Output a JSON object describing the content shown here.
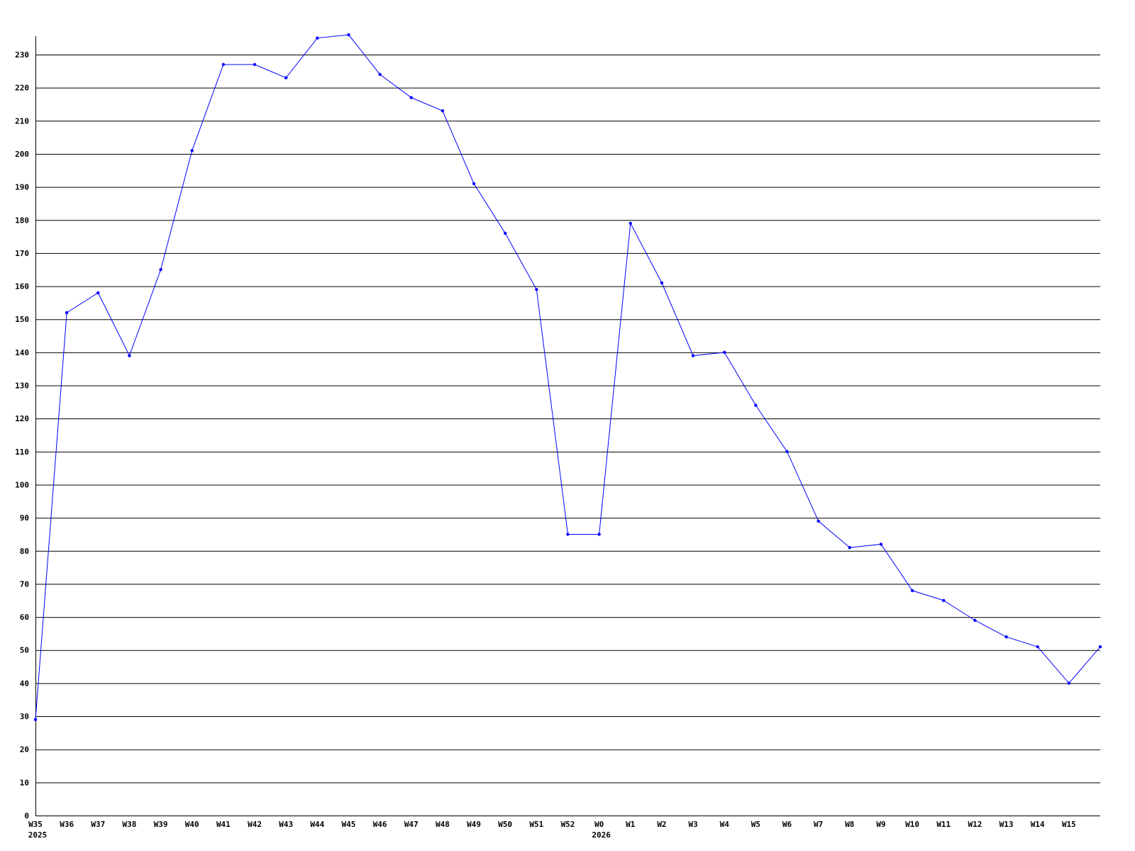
{
  "chart_data": {
    "type": "line",
    "title": "",
    "xlabel": "",
    "ylabel": "",
    "ylim": [
      0,
      236
    ],
    "y_ticks": [
      0,
      10,
      20,
      30,
      40,
      50,
      60,
      70,
      80,
      90,
      100,
      110,
      120,
      130,
      140,
      150,
      160,
      170,
      180,
      190,
      200,
      210,
      220,
      230
    ],
    "grid": "horizontal",
    "categories": [
      "W35",
      "W36",
      "W37",
      "W38",
      "W39",
      "W40",
      "W41",
      "W42",
      "W43",
      "W44",
      "W45",
      "W46",
      "W47",
      "W48",
      "W49",
      "W50",
      "W51",
      "W52",
      "W0",
      "W1",
      "W2",
      "W3",
      "W4",
      "W5",
      "W6",
      "W7",
      "W8",
      "W9",
      "W10",
      "W11",
      "W12",
      "W13",
      "W14",
      "W15",
      ""
    ],
    "year_labels": [
      {
        "at": "W35",
        "label": "2025"
      },
      {
        "at": "W0",
        "label": "2026"
      }
    ],
    "series": [
      {
        "color": "#0000ff",
        "values": [
          29,
          152,
          158,
          139,
          165,
          201,
          227,
          227,
          223,
          235,
          236,
          224,
          217,
          213,
          191,
          176,
          159,
          85,
          85,
          179,
          161,
          139,
          140,
          124,
          110,
          89,
          81,
          82,
          68,
          65,
          59,
          54,
          51,
          40,
          51
        ]
      }
    ],
    "colors": {
      "grid": "#000000",
      "line": "#0000ff",
      "background": "#ffffff"
    }
  }
}
